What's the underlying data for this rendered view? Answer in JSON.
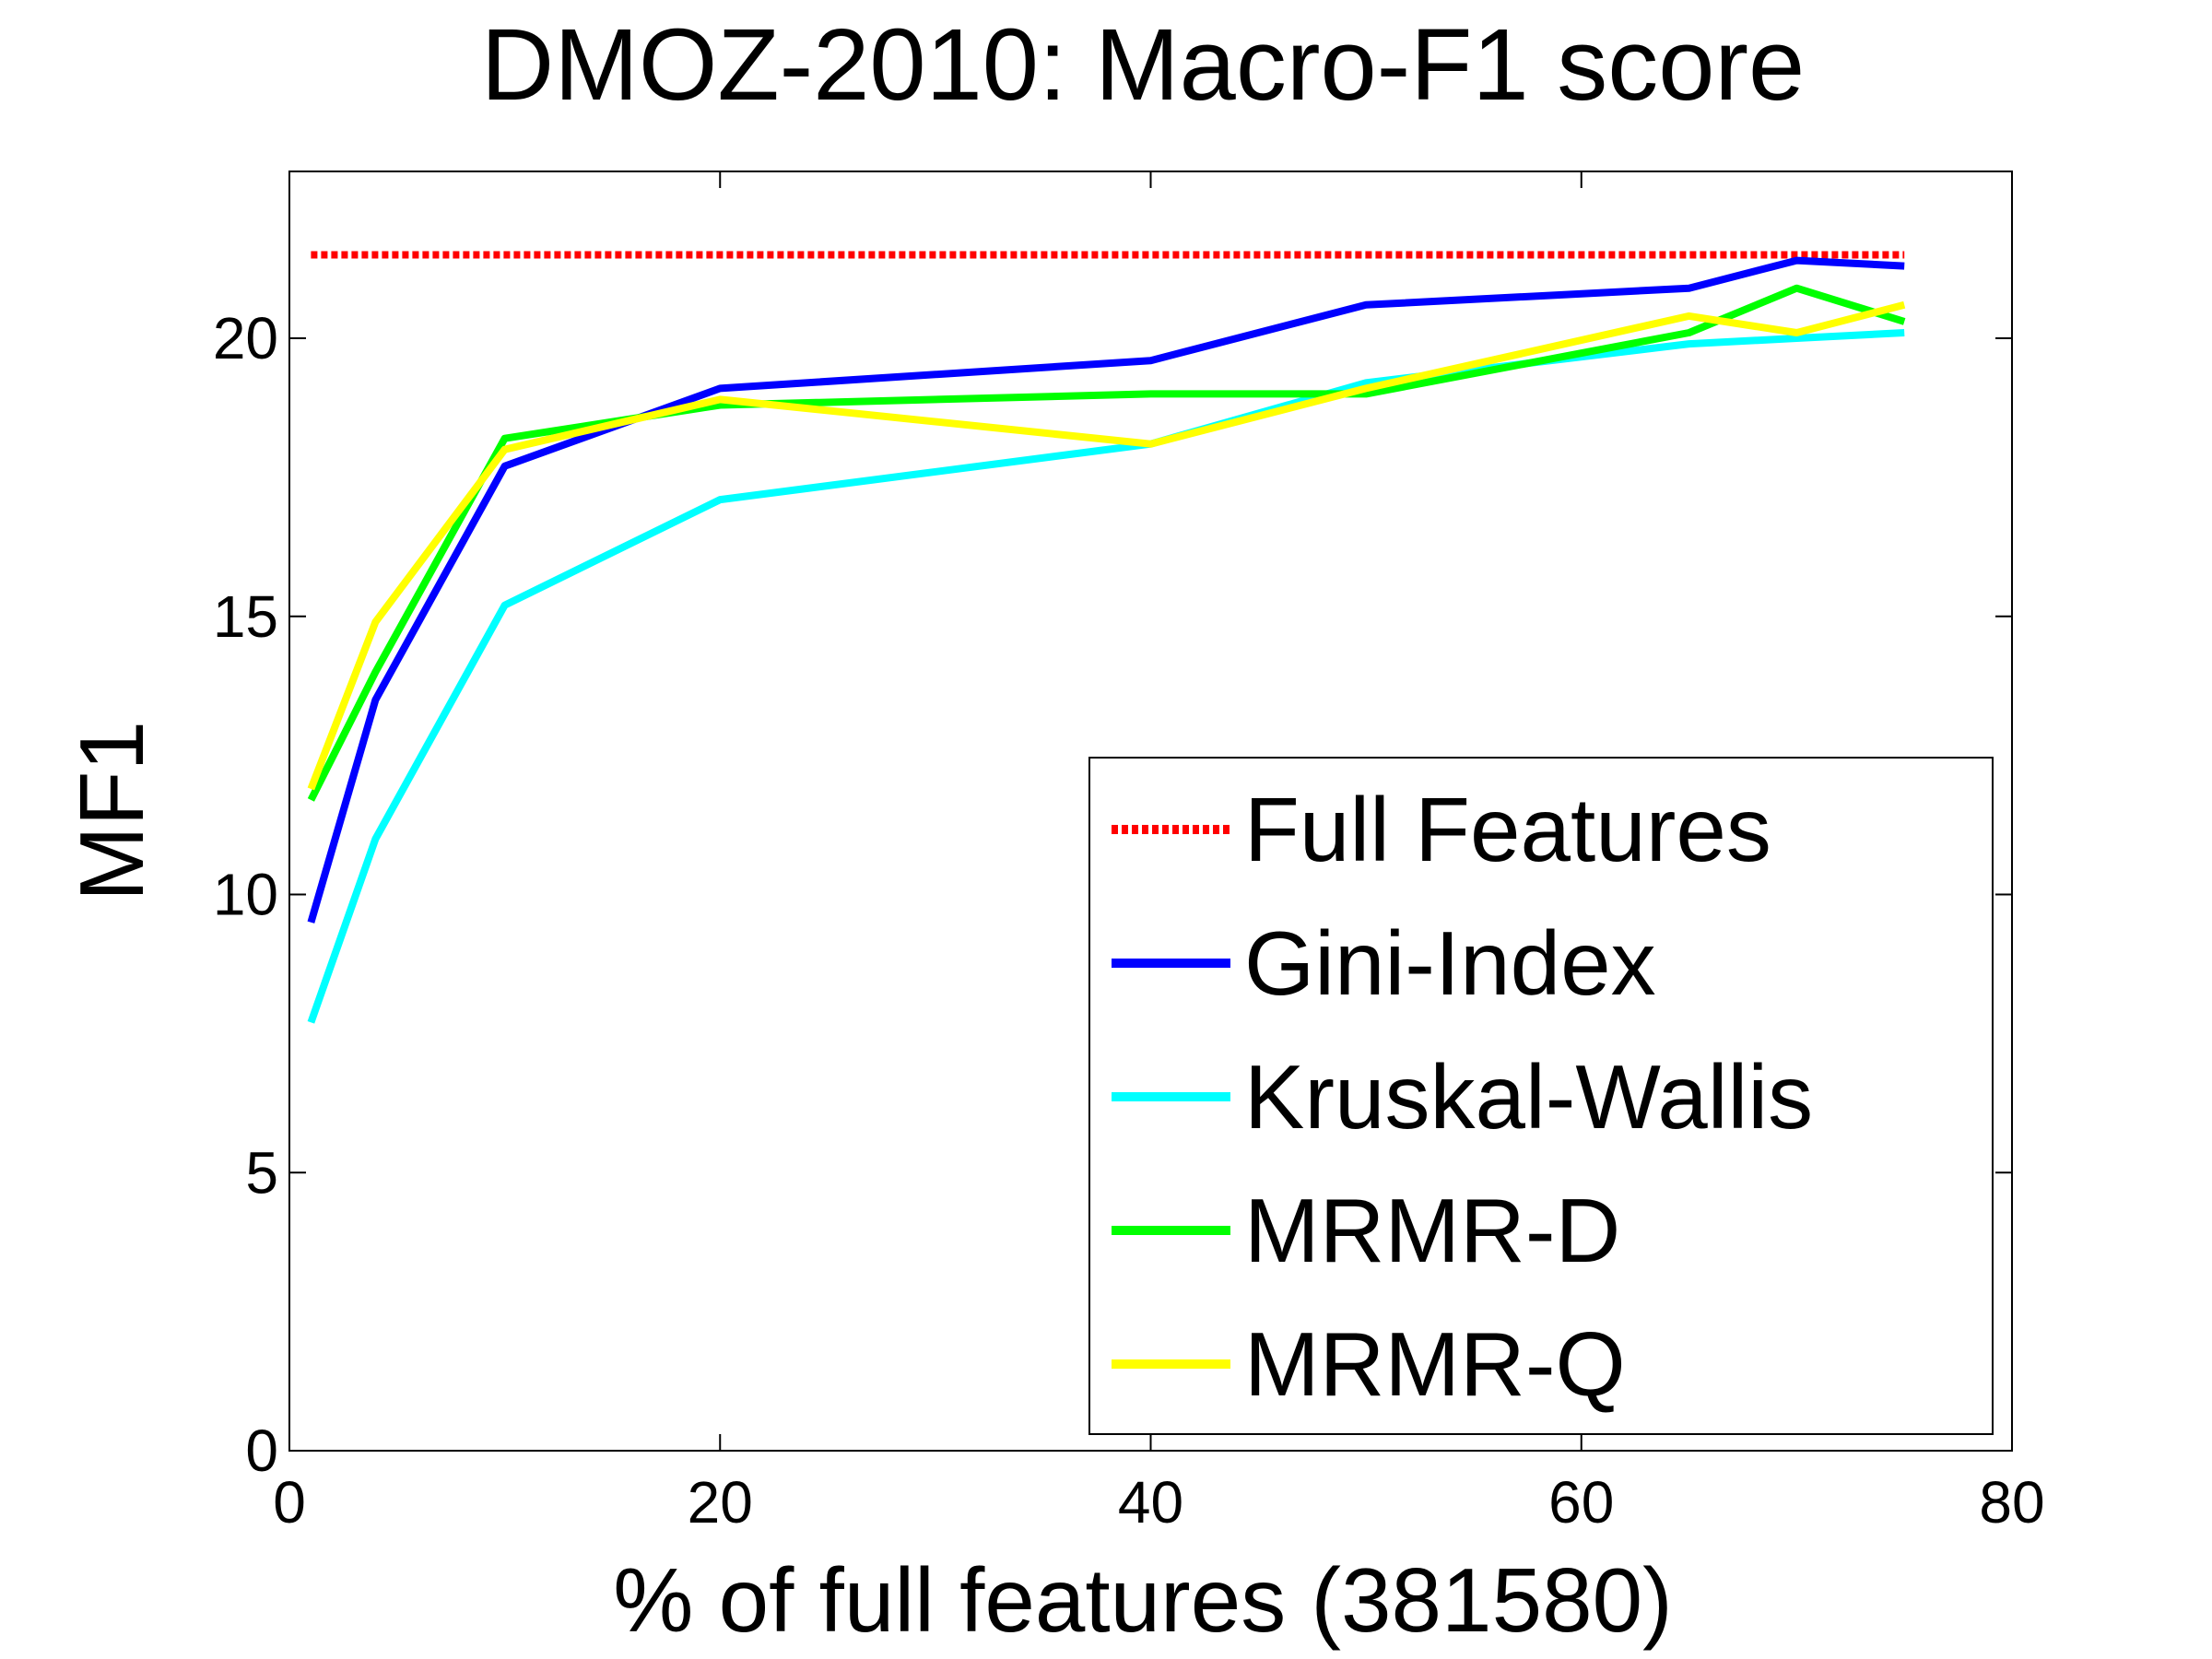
{
  "chart_data": {
    "type": "line",
    "title": "DMOZ-2010: Macro-F1 score",
    "xlabel": "% of full features (381580)",
    "ylabel": "MF1",
    "xlim": [
      0,
      80
    ],
    "ylim": [
      0,
      23
    ],
    "xticks": [
      "0",
      "20",
      "40",
      "60",
      "80"
    ],
    "yticks": [
      "0",
      "5",
      "10",
      "15",
      "20"
    ],
    "grid": false,
    "legend_position": "bottom-right",
    "series": [
      {
        "name": "Full Features",
        "color": "#ff0000",
        "style": "dotted",
        "x": [
          1,
          75
        ],
        "y": [
          21.5,
          21.5
        ]
      },
      {
        "name": "Gini-Index",
        "color": "#0000ff",
        "style": "solid",
        "x": [
          1,
          4,
          10,
          20,
          40,
          50,
          65,
          70,
          75
        ],
        "y": [
          9.5,
          13.5,
          17.7,
          19.1,
          19.6,
          20.6,
          20.9,
          21.4,
          21.3
        ]
      },
      {
        "name": "Kruskal-Wallis",
        "color": "#00ffff",
        "style": "solid",
        "x": [
          1,
          4,
          10,
          20,
          40,
          50,
          65,
          70,
          75
        ],
        "y": [
          7.7,
          11.0,
          15.2,
          17.1,
          18.1,
          19.2,
          19.9,
          20.0,
          20.1
        ]
      },
      {
        "name": "MRMR-D",
        "color": "#00ff00",
        "style": "solid",
        "x": [
          1,
          4,
          10,
          20,
          40,
          50,
          65,
          70,
          75
        ],
        "y": [
          11.7,
          14.0,
          18.2,
          18.8,
          19.0,
          19.0,
          20.1,
          20.9,
          20.3
        ]
      },
      {
        "name": "MRMR-Q",
        "color": "#ffff00",
        "style": "solid",
        "x": [
          1,
          4,
          10,
          20,
          40,
          50,
          65,
          70,
          75
        ],
        "y": [
          11.9,
          14.9,
          18.0,
          18.9,
          18.1,
          19.1,
          20.4,
          20.1,
          20.6
        ]
      }
    ]
  }
}
